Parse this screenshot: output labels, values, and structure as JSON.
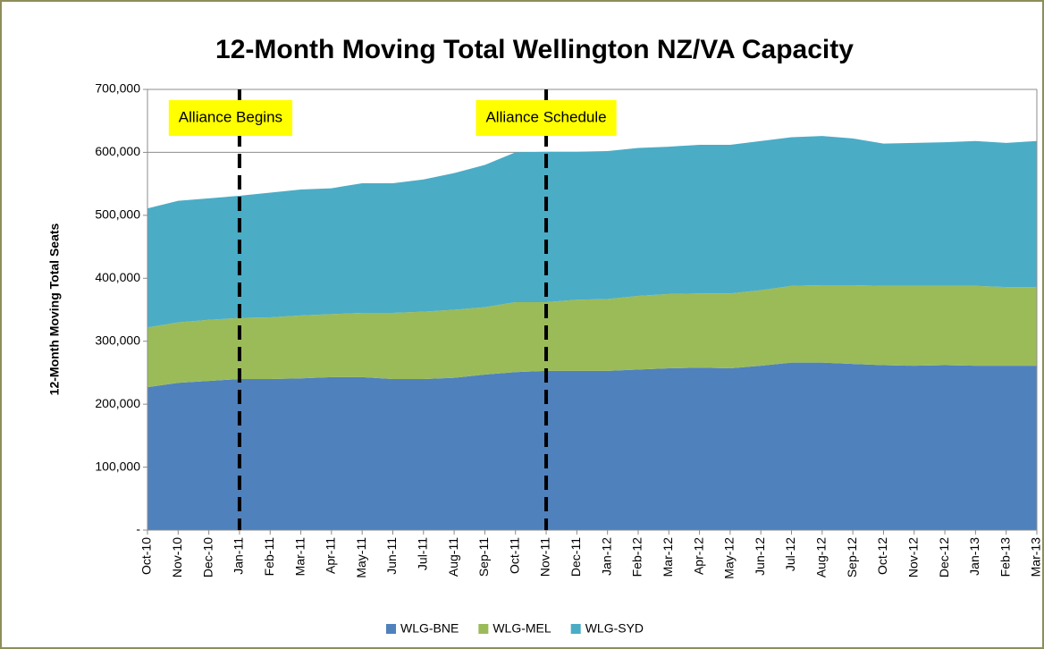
{
  "chart_data": {
    "type": "stacked_area",
    "title": "12-Month Moving Total Wellington NZ/VA Capacity",
    "y_label": "12-Month Moving Total Seats",
    "categories": [
      "Oct-10",
      "Nov-10",
      "Dec-10",
      "Jan-11",
      "Feb-11",
      "Mar-11",
      "Apr-11",
      "May-11",
      "Jun-11",
      "Jul-11",
      "Aug-11",
      "Sep-11",
      "Oct-11",
      "Nov-11",
      "Dec-11",
      "Jan-12",
      "Feb-12",
      "Mar-12",
      "Apr-12",
      "May-12",
      "Jun-12",
      "Jul-12",
      "Aug-12",
      "Sep-12",
      "Oct-12",
      "Nov-12",
      "Dec-12",
      "Jan-13",
      "Feb-13",
      "Mar-13"
    ],
    "series": [
      {
        "name": "WLG-BNE",
        "color": "#4f81bd",
        "values": [
          227000,
          234000,
          237000,
          240000,
          240000,
          241000,
          243000,
          243000,
          240000,
          240000,
          242000,
          247000,
          251000,
          253000,
          253000,
          253000,
          255000,
          257000,
          258000,
          257000,
          261000,
          266000,
          266000,
          264000,
          262000,
          261000,
          262000,
          261000,
          261000,
          261000
        ]
      },
      {
        "name": "WLG-MEL",
        "color": "#9bbb59",
        "values": [
          95000,
          96000,
          97000,
          97000,
          98000,
          100000,
          100000,
          102000,
          105000,
          107000,
          108000,
          107000,
          111000,
          109000,
          113000,
          114000,
          117000,
          118000,
          118000,
          119000,
          120000,
          122000,
          123000,
          125000,
          126000,
          127000,
          126000,
          127000,
          125000,
          125000
        ]
      },
      {
        "name": "WLG-SYD",
        "color": "#4bacc6",
        "values": [
          189000,
          193000,
          193000,
          194000,
          198000,
          200000,
          200000,
          206000,
          206000,
          210000,
          217000,
          226000,
          238000,
          239000,
          235000,
          235000,
          235000,
          234000,
          236000,
          236000,
          237000,
          236000,
          237000,
          233000,
          226000,
          227000,
          228000,
          230000,
          229000,
          232000
        ]
      }
    ],
    "ylim": [
      0,
      700000
    ],
    "yticks": [
      {
        "value": 0,
        "label": "-"
      },
      {
        "value": 100000,
        "label": "100,000"
      },
      {
        "value": 200000,
        "label": "200,000"
      },
      {
        "value": 300000,
        "label": "300,000"
      },
      {
        "value": 400000,
        "label": "400,000"
      },
      {
        "value": 500000,
        "label": "500,000"
      },
      {
        "value": 600000,
        "label": "600,000"
      },
      {
        "value": 700000,
        "label": "700,000"
      }
    ],
    "grid": true,
    "legend": "bottom",
    "annotations": [
      {
        "text": "Alliance Begins",
        "x": "Jan-11"
      },
      {
        "text": "Alliance Schedule",
        "x": "Nov-11"
      }
    ]
  }
}
